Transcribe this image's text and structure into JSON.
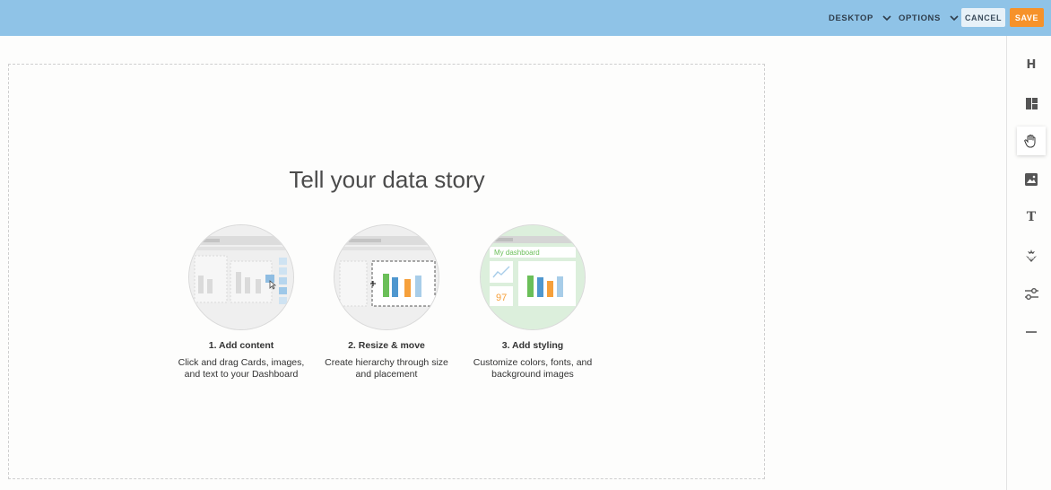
{
  "topbar": {
    "desktop_label": "DESKTOP",
    "options_label": "OPTIONS",
    "cancel_label": "CANCEL",
    "save_label": "SAVE",
    "colors": {
      "bar": "#8fc3e7",
      "save": "#f6922a"
    }
  },
  "main": {
    "headline": "Tell your data story",
    "steps": [
      {
        "title": "1. Add content",
        "desc_line1": "Click and drag Cards, images,",
        "desc_line2": "and text to your Dashboard"
      },
      {
        "title": "2. Resize & move",
        "desc_line1": "Create hierarchy through size",
        "desc_line2": "and placement"
      },
      {
        "title": "3. Add styling",
        "desc_line1": "Customize colors, fonts, and",
        "desc_line2": "background images"
      }
    ],
    "illustration": {
      "dashboard_label": "My dashboard",
      "kpi_value": "97"
    }
  },
  "sidebar": {
    "items": [
      {
        "icon": "header-h-icon"
      },
      {
        "icon": "layout-icon"
      },
      {
        "icon": "hand-grab-icon",
        "active": true
      },
      {
        "icon": "image-icon"
      },
      {
        "icon": "text-t-icon"
      },
      {
        "icon": "sparkle-effects-icon"
      },
      {
        "icon": "sliders-icon"
      },
      {
        "icon": "divider-line-icon"
      }
    ]
  }
}
